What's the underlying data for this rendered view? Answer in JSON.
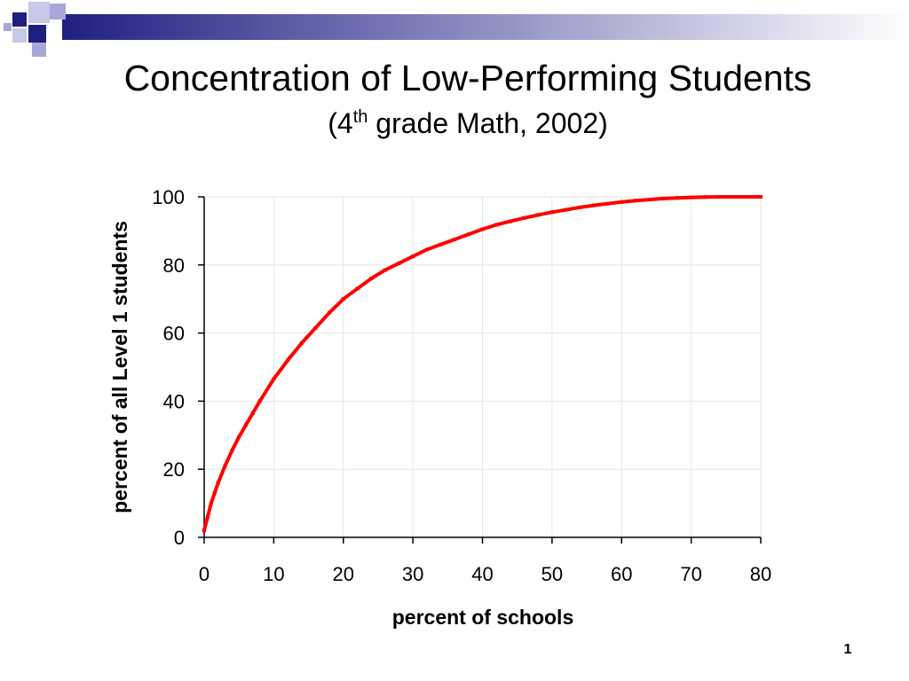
{
  "slide": {
    "title": "Concentration of Low-Performing Students",
    "subtitle_open": "(4",
    "subtitle_sup": "th",
    "subtitle_rest": " grade Math, 2002)",
    "number": "1",
    "accent_color": "#1f1f80",
    "secondary_color": "#a8a8d8"
  },
  "chart_data": {
    "type": "line",
    "title": "",
    "xlabel": "percent of schools",
    "ylabel": "percent of all Level 1 students",
    "xlim": [
      0,
      80
    ],
    "ylim": [
      0,
      100
    ],
    "x_ticks": [
      0,
      10,
      20,
      30,
      40,
      50,
      60,
      70,
      80
    ],
    "y_ticks": [
      0,
      20,
      40,
      60,
      80,
      100
    ],
    "grid": true,
    "legend": "none",
    "series": [
      {
        "color": "#ff0000",
        "x": [
          0,
          0.5,
          1,
          1.5,
          2,
          3,
          4,
          5,
          6,
          7,
          8,
          10,
          12,
          14,
          16,
          18,
          20,
          22,
          24,
          26,
          28,
          30,
          32,
          34,
          36,
          38,
          40,
          42,
          44,
          46,
          48,
          50,
          52,
          54,
          56,
          58,
          60,
          62,
          64,
          66,
          68,
          70,
          72,
          74,
          76,
          78,
          80
        ],
        "y": [
          2,
          6,
          10,
          13,
          16,
          21,
          25.5,
          29.5,
          33,
          36.5,
          40,
          46.5,
          52,
          57,
          61.5,
          66,
          70,
          73,
          76,
          78.5,
          80.5,
          82.5,
          84.5,
          86,
          87.5,
          89,
          90.5,
          91.8,
          92.8,
          93.8,
          94.7,
          95.5,
          96.2,
          96.9,
          97.5,
          98,
          98.5,
          98.9,
          99.2,
          99.5,
          99.7,
          99.85,
          99.95,
          100,
          100,
          100,
          100
        ]
      }
    ]
  }
}
